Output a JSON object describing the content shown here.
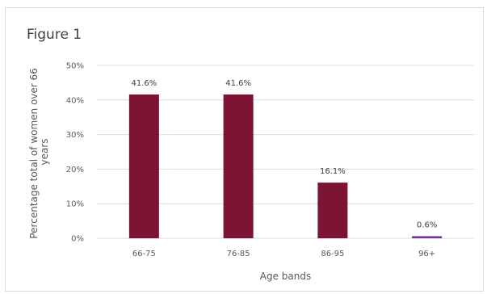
{
  "chart_data": {
    "type": "bar",
    "title": "Figure 1",
    "categories": [
      "66-75",
      "76-85",
      "86-95",
      "96+"
    ],
    "values": [
      41.6,
      41.6,
      16.1,
      0.6
    ],
    "data_labels": [
      "41.6%",
      "41.6%",
      "16.1%",
      "0.6%"
    ],
    "bar_colors": [
      "#7d1434",
      "#7d1434",
      "#7d1434",
      "#7030a0"
    ],
    "xlabel": "Age bands",
    "ylabel_lines": [
      "Percentage total of women over 66",
      "years"
    ],
    "ylim": [
      0,
      50
    ],
    "yticks": [
      0,
      10,
      20,
      30,
      40,
      50
    ],
    "ytick_labels": [
      "0%",
      "10%",
      "20%",
      "30%",
      "40%",
      "50%"
    ],
    "grid": true,
    "grid_color": "#d9d9d9",
    "legend": "none"
  }
}
